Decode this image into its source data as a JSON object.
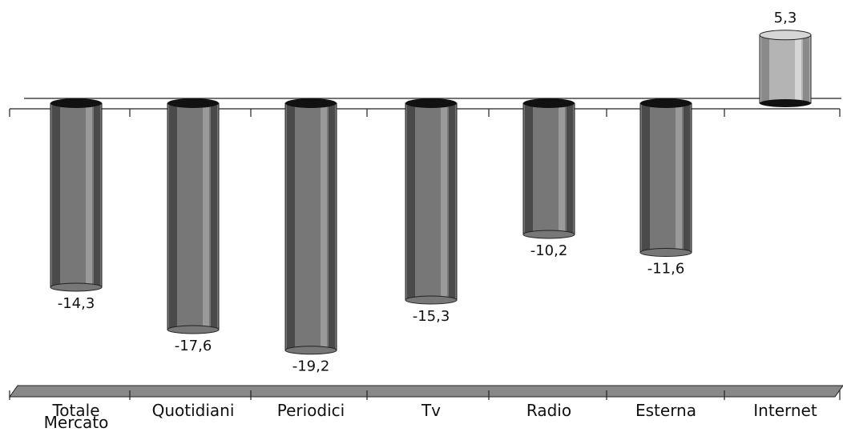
{
  "chart_data": {
    "type": "bar",
    "title": "",
    "xlabel": "",
    "ylabel": "",
    "categories": [
      "Totale Mercato",
      "Quotidiani",
      "Periodici",
      "Tv",
      "Radio",
      "Esterna",
      "Internet"
    ],
    "category_lines": [
      [
        "Totale",
        "Mercato"
      ],
      [
        "Quotidiani"
      ],
      [
        "Periodici"
      ],
      [
        "Tv"
      ],
      [
        "Radio"
      ],
      [
        "Esterna"
      ],
      [
        "Internet"
      ]
    ],
    "values": [
      -14.3,
      -17.6,
      -19.2,
      -15.3,
      -10.2,
      -11.6,
      5.3
    ],
    "value_labels": [
      "-14,3",
      "-17,6",
      "-19,2",
      "-15,3",
      "-10,2",
      "-11,6",
      "5,3"
    ],
    "grid": false,
    "legend": "none"
  },
  "colors": {
    "negative_bar": "#777777",
    "negative_bar_dark": "#4a4a4a",
    "negative_bar_light": "#9a9a9a",
    "positive_bar": "#b4b4b4",
    "positive_bar_dark": "#8a8a8a",
    "positive_bar_light": "#d6d6d6",
    "bar_cap": "#111111",
    "axis": "#222222",
    "floor": "#888888"
  }
}
